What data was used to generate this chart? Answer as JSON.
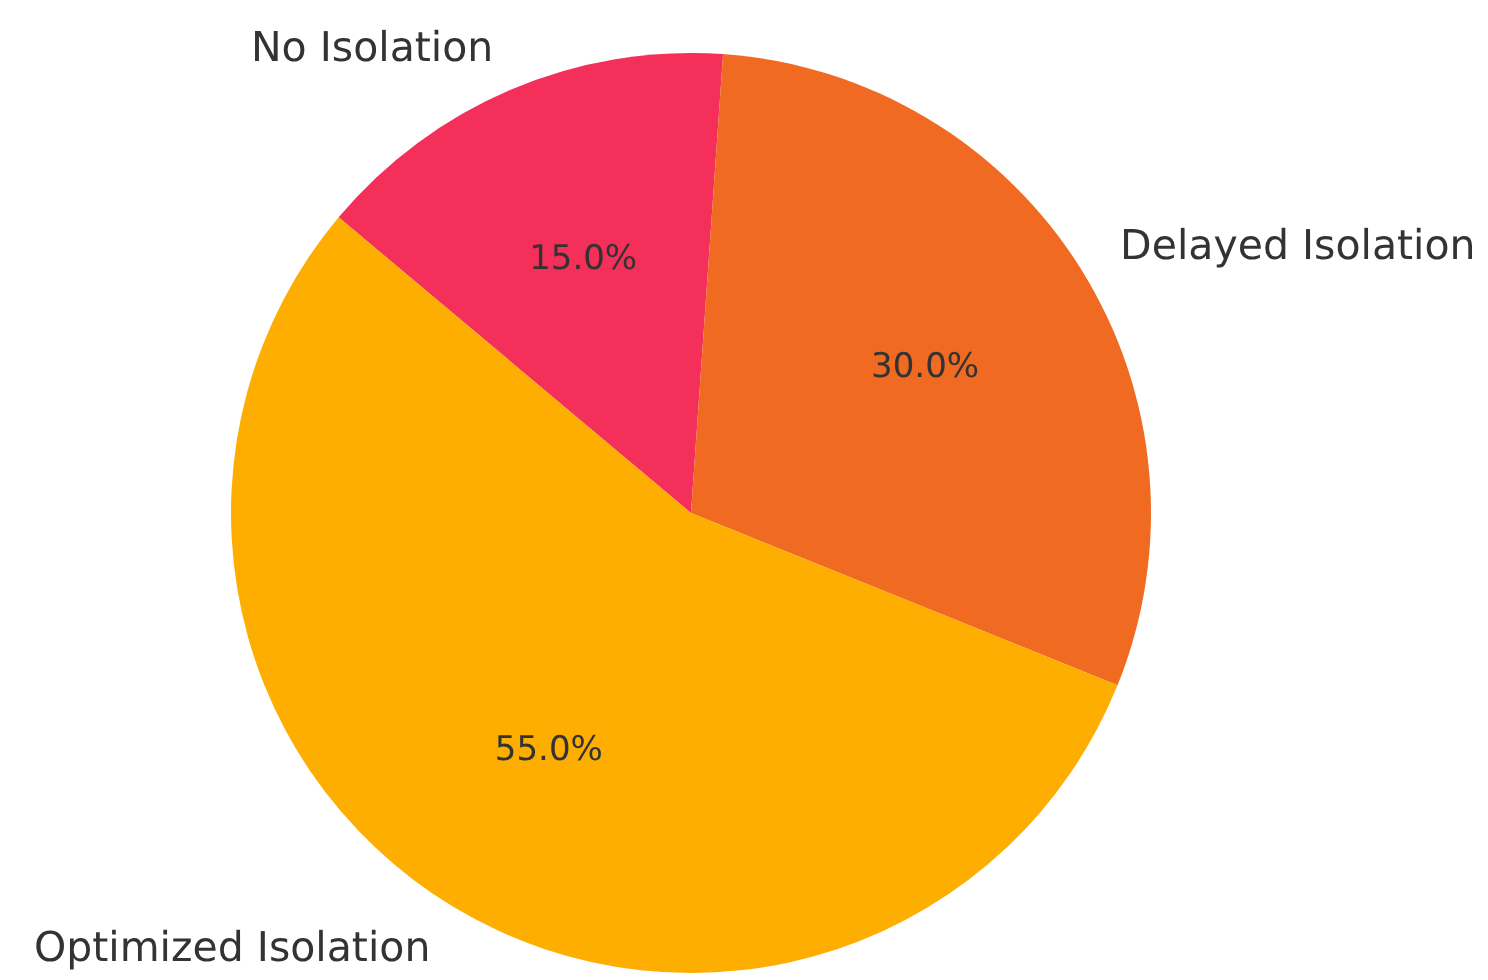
{
  "chart_data": {
    "type": "pie",
    "categories": [
      "No Isolation",
      "Delayed Isolation",
      "Optimized Isolation"
    ],
    "values": [
      15,
      30,
      55
    ],
    "colors": [
      "#f42f5a",
      "#f06a21",
      "#fdae00"
    ],
    "value_labels": [
      "15.0%",
      "30.0%",
      "55.0%"
    ]
  }
}
